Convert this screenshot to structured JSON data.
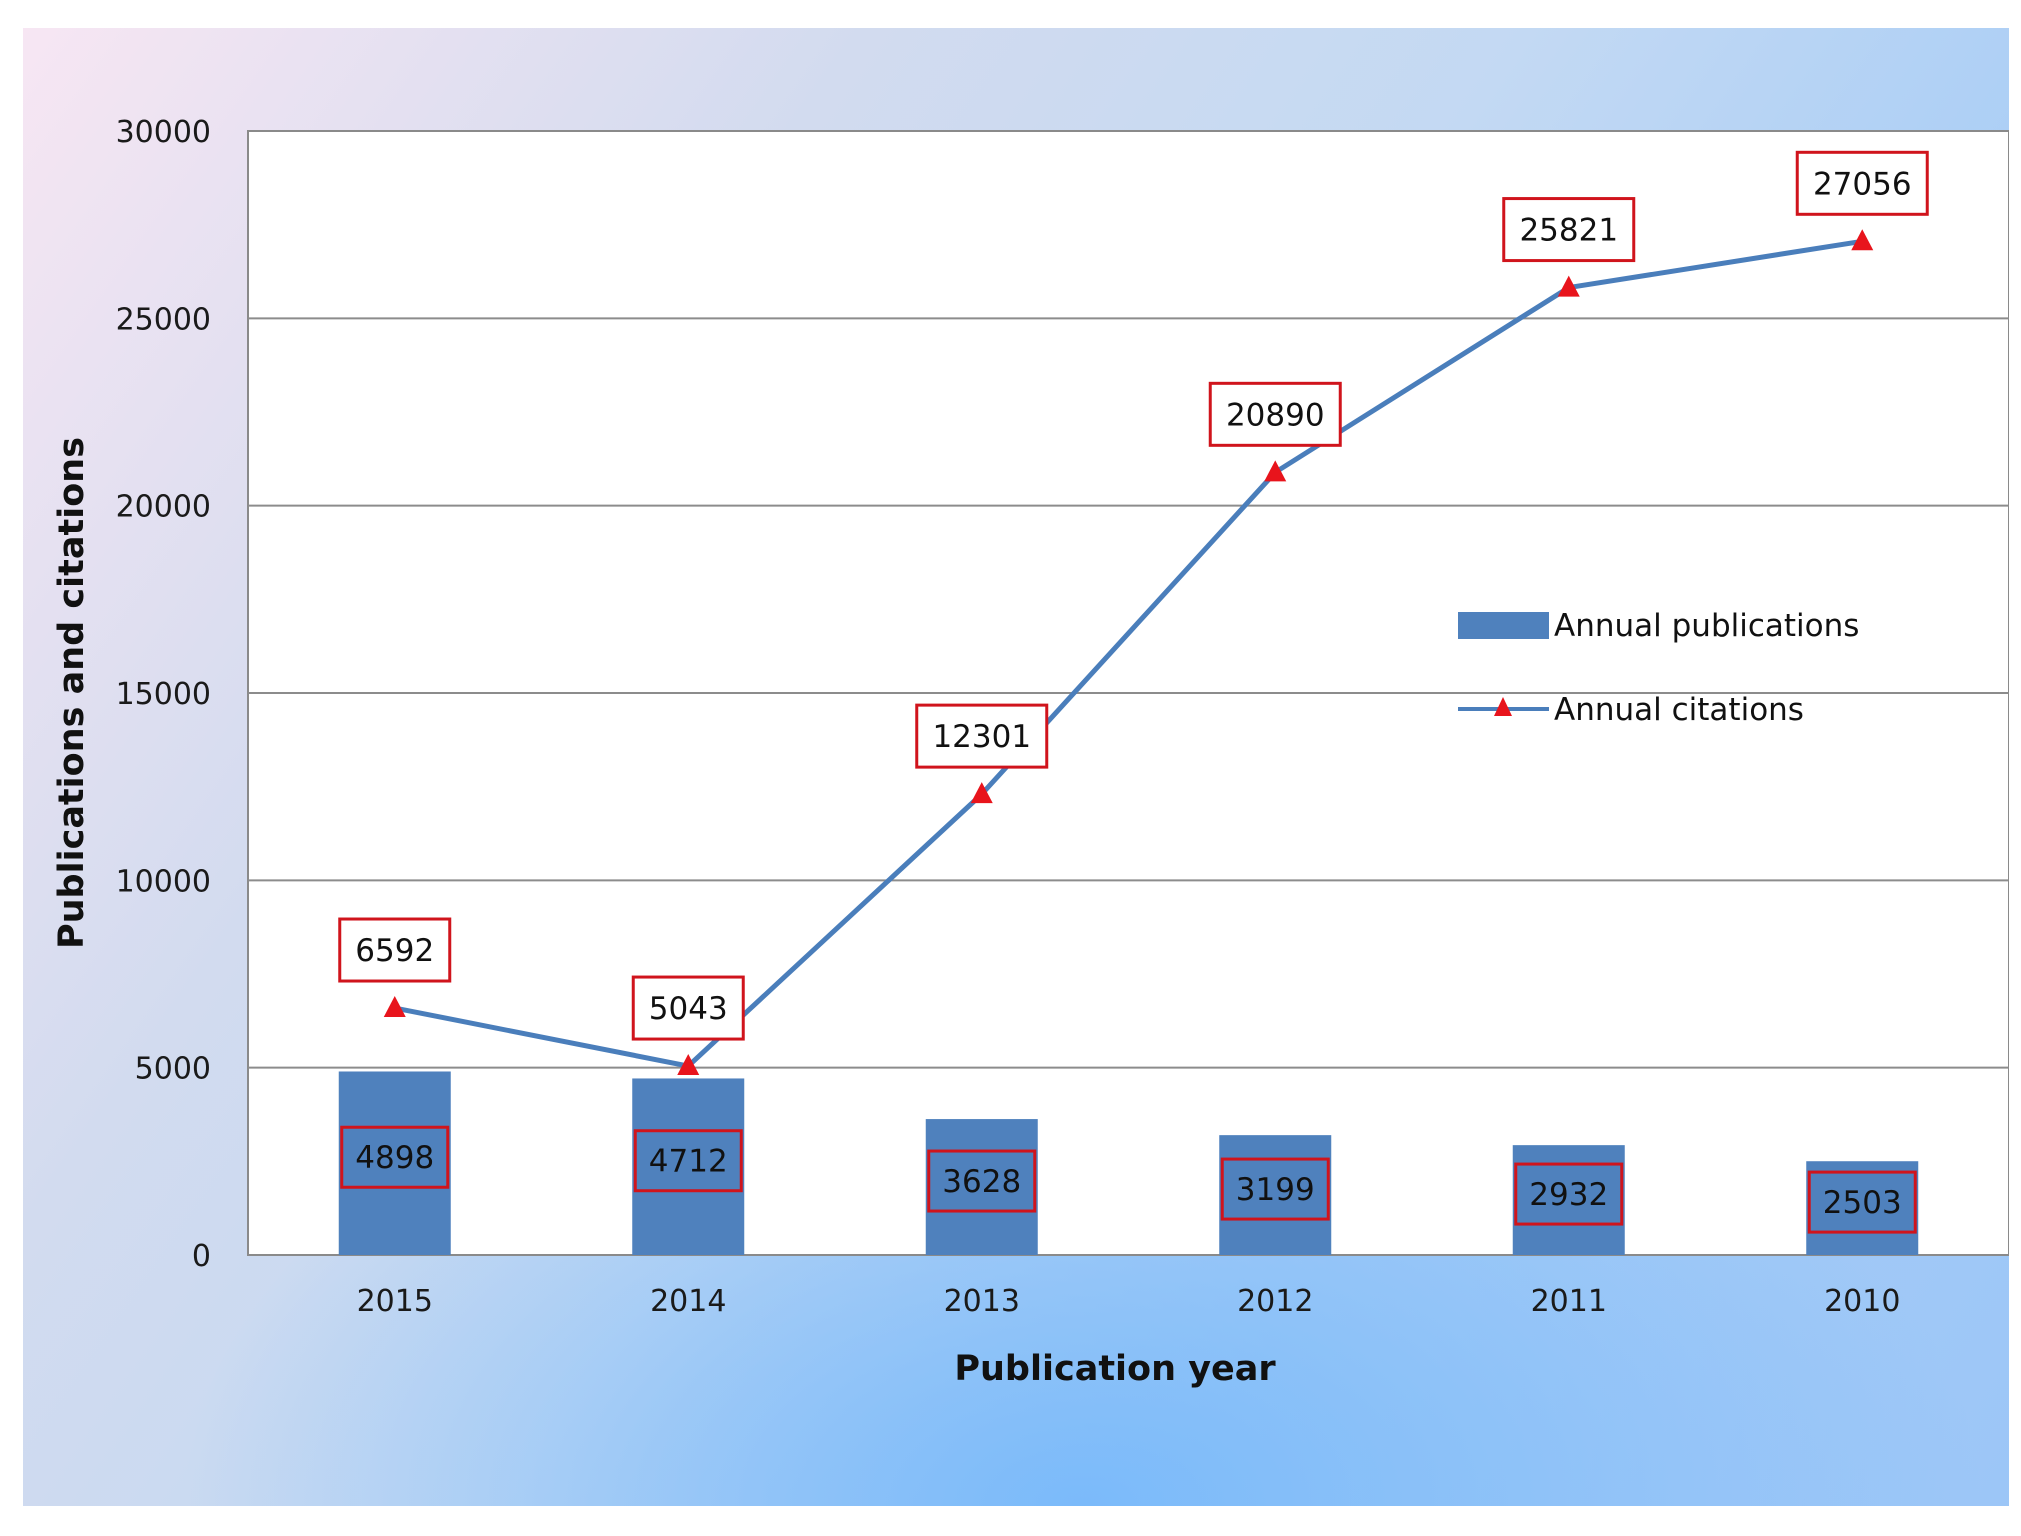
{
  "chart_data": {
    "type": "bar",
    "categories": [
      "2015",
      "2014",
      "2013",
      "2012",
      "2011",
      "2010"
    ],
    "series": [
      {
        "name": "Annual publications",
        "type": "bar",
        "values": [
          4898,
          4712,
          3628,
          3199,
          2932,
          2503
        ],
        "color": "#4f81bd"
      },
      {
        "name": "Annual citations",
        "type": "line",
        "marker": "triangle",
        "values": [
          6592,
          5043,
          12301,
          20890,
          25821,
          27056
        ],
        "color": "#4a7ebb",
        "marker_color": "#e8141c"
      }
    ],
    "xlabel": "Publication year",
    "ylabel": "Publications and citations",
    "ylim": [
      0,
      30000
    ],
    "yticks": [
      "0",
      "5000",
      "10000",
      "15000",
      "20000",
      "25000",
      "30000"
    ],
    "grid": true,
    "legend_position": "right",
    "data_label_border_color": "#d0141c"
  }
}
